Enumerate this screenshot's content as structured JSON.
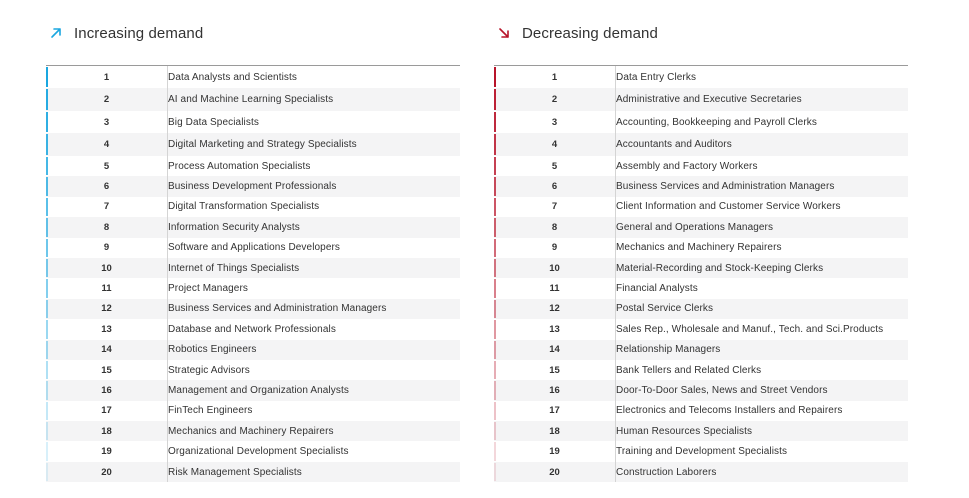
{
  "increasing": {
    "title": "Increasing demand",
    "accent": "#1aa7e0",
    "icon": "arrow-up-right-icon",
    "items": [
      {
        "rank": "1",
        "label": "Data Analysts and Scientists"
      },
      {
        "rank": "2",
        "label": "AI and Machine Learning Specialists"
      },
      {
        "rank": "3",
        "label": "Big Data Specialists"
      },
      {
        "rank": "4",
        "label": "Digital Marketing and Strategy Specialists"
      },
      {
        "rank": "5",
        "label": "Process Automation Specialists"
      },
      {
        "rank": "6",
        "label": "Business Development Professionals"
      },
      {
        "rank": "7",
        "label": "Digital Transformation Specialists"
      },
      {
        "rank": "8",
        "label": "Information Security Analysts"
      },
      {
        "rank": "9",
        "label": "Software and Applications Developers"
      },
      {
        "rank": "10",
        "label": "Internet of Things Specialists"
      },
      {
        "rank": "11",
        "label": "Project Managers"
      },
      {
        "rank": "12",
        "label": "Business Services and Administration Managers"
      },
      {
        "rank": "13",
        "label": "Database and Network Professionals"
      },
      {
        "rank": "14",
        "label": "Robotics Engineers"
      },
      {
        "rank": "15",
        "label": "Strategic Advisors"
      },
      {
        "rank": "16",
        "label": "Management and Organization Analysts"
      },
      {
        "rank": "17",
        "label": "FinTech Engineers"
      },
      {
        "rank": "18",
        "label": "Mechanics and Machinery Repairers"
      },
      {
        "rank": "19",
        "label": "Organizational Development Specialists"
      },
      {
        "rank": "20",
        "label": "Risk Management Specialists"
      }
    ]
  },
  "decreasing": {
    "title": "Decreasing demand",
    "accent": "#b8142a",
    "icon": "arrow-down-right-icon",
    "items": [
      {
        "rank": "1",
        "label": "Data Entry Clerks"
      },
      {
        "rank": "2",
        "label": "Administrative and Executive Secretaries"
      },
      {
        "rank": "3",
        "label": "Accounting,  Bookkeeping and Payroll Clerks"
      },
      {
        "rank": "4",
        "label": "Accountants and Auditors"
      },
      {
        "rank": "5",
        "label": "Assembly and Factory Workers"
      },
      {
        "rank": "6",
        "label": "Business Services and Administration Managers"
      },
      {
        "rank": "7",
        "label": "Client Information and Customer Service Workers"
      },
      {
        "rank": "8",
        "label": "General and Operations Managers"
      },
      {
        "rank": "9",
        "label": "Mechanics and Machinery Repairers"
      },
      {
        "rank": "10",
        "label": "Material-Recording and Stock-Keeping Clerks"
      },
      {
        "rank": "11",
        "label": "Financial Analysts"
      },
      {
        "rank": "12",
        "label": "Postal Service Clerks"
      },
      {
        "rank": "13",
        "label": "Sales Rep., Wholesale and Manuf., Tech. and Sci.Products"
      },
      {
        "rank": "14",
        "label": "Relationship Managers"
      },
      {
        "rank": "15",
        "label": "Bank Tellers and Related Clerks"
      },
      {
        "rank": "16",
        "label": "Door-To-Door Sales, News and Street Vendors"
      },
      {
        "rank": "17",
        "label": "Electronics and Telecoms Installers and Repairers"
      },
      {
        "rank": "18",
        "label": "Human Resources Specialists"
      },
      {
        "rank": "19",
        "label": "Training and Development Specialists"
      },
      {
        "rank": "20",
        "label": "Construction Laborers"
      }
    ]
  }
}
